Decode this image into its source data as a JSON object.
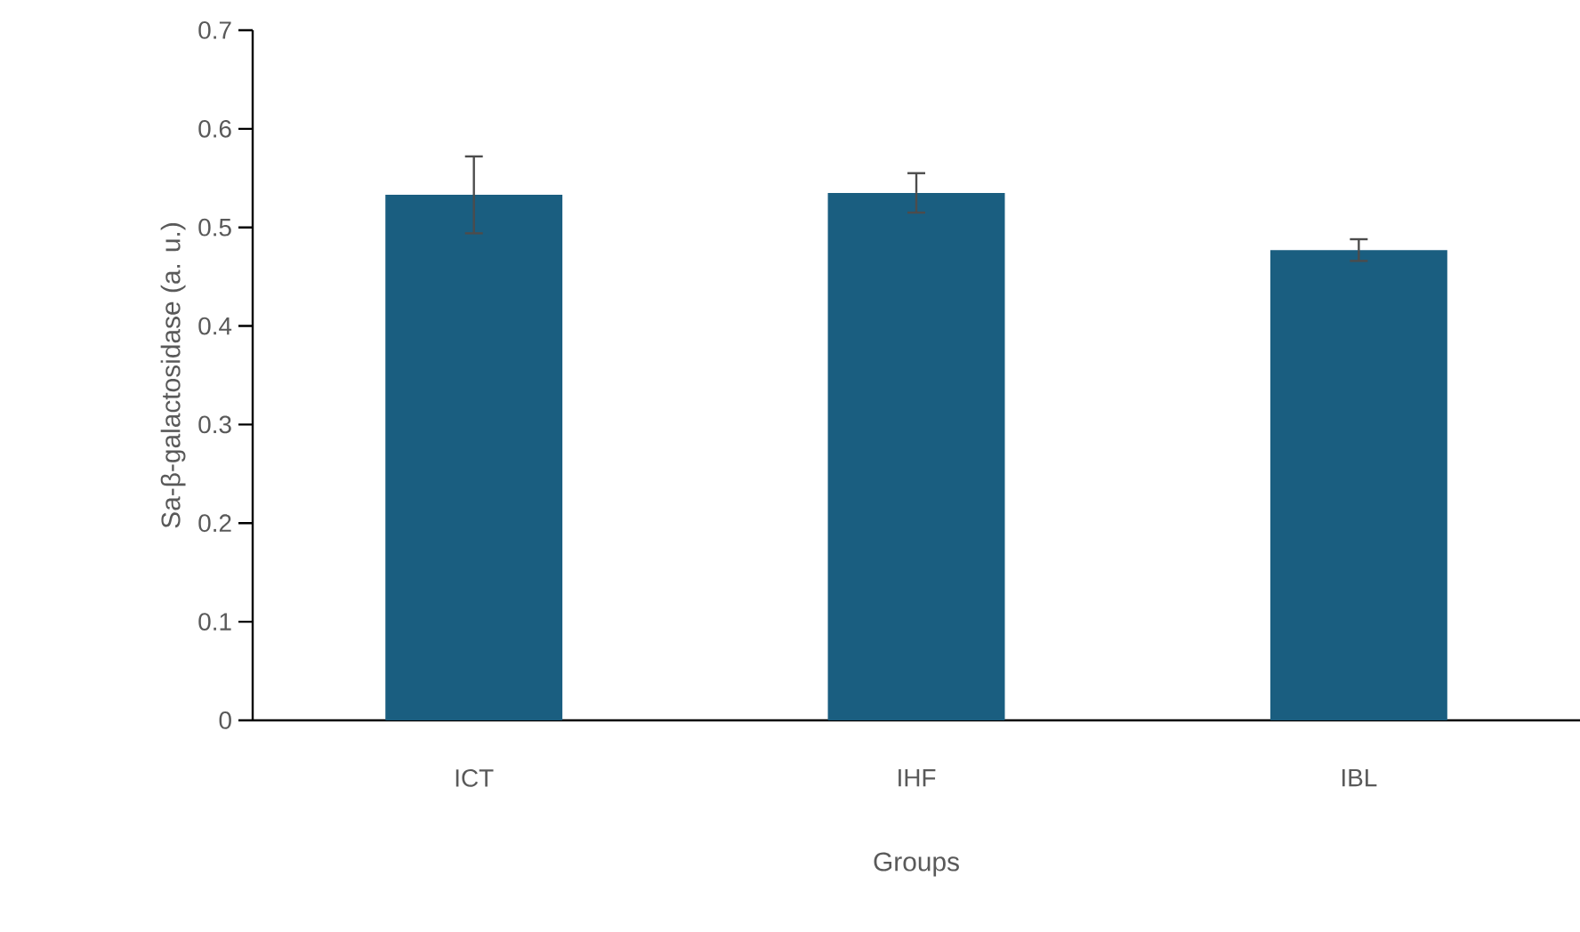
{
  "chart_data": {
    "type": "bar",
    "xlabel": "Groups",
    "ylabel": "Sa-β-galactosidase (a. u.)",
    "categories": [
      "ICT",
      "IHF",
      "IBL"
    ],
    "values": [
      0.533,
      0.535,
      0.477
    ],
    "errors": [
      0.039,
      0.02,
      0.011
    ],
    "color": "#1a5e80",
    "ylim": [
      0,
      0.7
    ],
    "yticks": [
      0,
      0.1,
      0.2,
      0.3,
      0.4,
      0.5,
      0.6,
      0.7
    ],
    "grid": false
  }
}
